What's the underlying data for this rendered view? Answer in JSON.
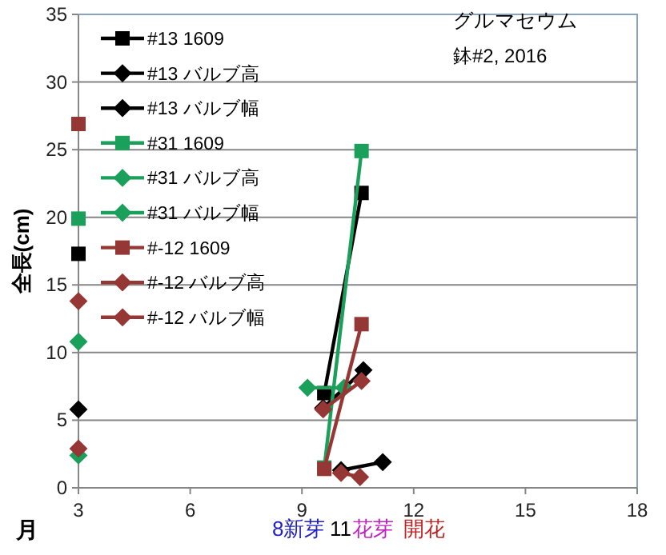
{
  "chart_data": {
    "type": "line",
    "title": "グルマセウム",
    "subtitle": "鉢#2, 2016",
    "xlabel": "月",
    "ylabel": "全長(cm)",
    "annotations": [
      "8新芽",
      "11",
      "花芽",
      "開花"
    ],
    "xlim": [
      3,
      18
    ],
    "xticks": [
      3,
      6,
      9,
      12,
      15,
      18
    ],
    "ylim": [
      0,
      35
    ],
    "yticks": [
      0,
      5,
      10,
      15,
      20,
      25,
      30,
      35
    ],
    "grid": "y",
    "legend": "top left",
    "series": [
      {
        "name": "#13 1609",
        "color": "#000000",
        "marker": "square",
        "x": [
          3,
          6,
          9.6,
          10.6
        ],
        "values": [
          17.3,
          null,
          7.0,
          21.8
        ]
      },
      {
        "name": "#13 バルブ高",
        "color": "#000000",
        "marker": "diamond",
        "x": [
          10.05,
          11.17
        ],
        "values": [
          1.3,
          1.9
        ]
      },
      {
        "name": "#13 バルブ幅",
        "color": "#000000",
        "marker": "diamond",
        "x": [
          3,
          6,
          9.57,
          10.65
        ],
        "values": [
          5.8,
          null,
          5.9,
          8.7
        ]
      },
      {
        "name": "#31 1609",
        "color": "#1aa05a",
        "marker": "square",
        "x": [
          3,
          6,
          9.6,
          10.6
        ],
        "values": [
          19.9,
          null,
          1.5,
          24.9
        ]
      },
      {
        "name": "#31 バルブ高",
        "color": "#1aa05a",
        "marker": "diamond",
        "x": [
          3,
          6,
          9.15,
          10.13
        ],
        "values": [
          2.4,
          null,
          7.4,
          7.4
        ]
      },
      {
        "name": "#31 バルブ幅",
        "color": "#1aa05a",
        "marker": "diamond",
        "x": [
          3
        ],
        "values": [
          10.8
        ]
      },
      {
        "name": "#-12 1609",
        "color": "#953735",
        "marker": "square",
        "x": [
          3,
          6,
          9.6,
          10.6
        ],
        "values": [
          26.9,
          null,
          1.4,
          12.1
        ]
      },
      {
        "name": "#-12 バルブ高",
        "color": "#953735",
        "marker": "diamond",
        "x": [
          3,
          6,
          10.05,
          10.56
        ],
        "values": [
          2.9,
          null,
          1.1,
          0.8
        ]
      },
      {
        "name": "#-12 バルブ幅",
        "color": "#953735",
        "marker": "diamond",
        "x": [
          3,
          6,
          9.57,
          10.6
        ],
        "values": [
          13.8,
          null,
          5.8,
          7.9
        ]
      }
    ]
  }
}
